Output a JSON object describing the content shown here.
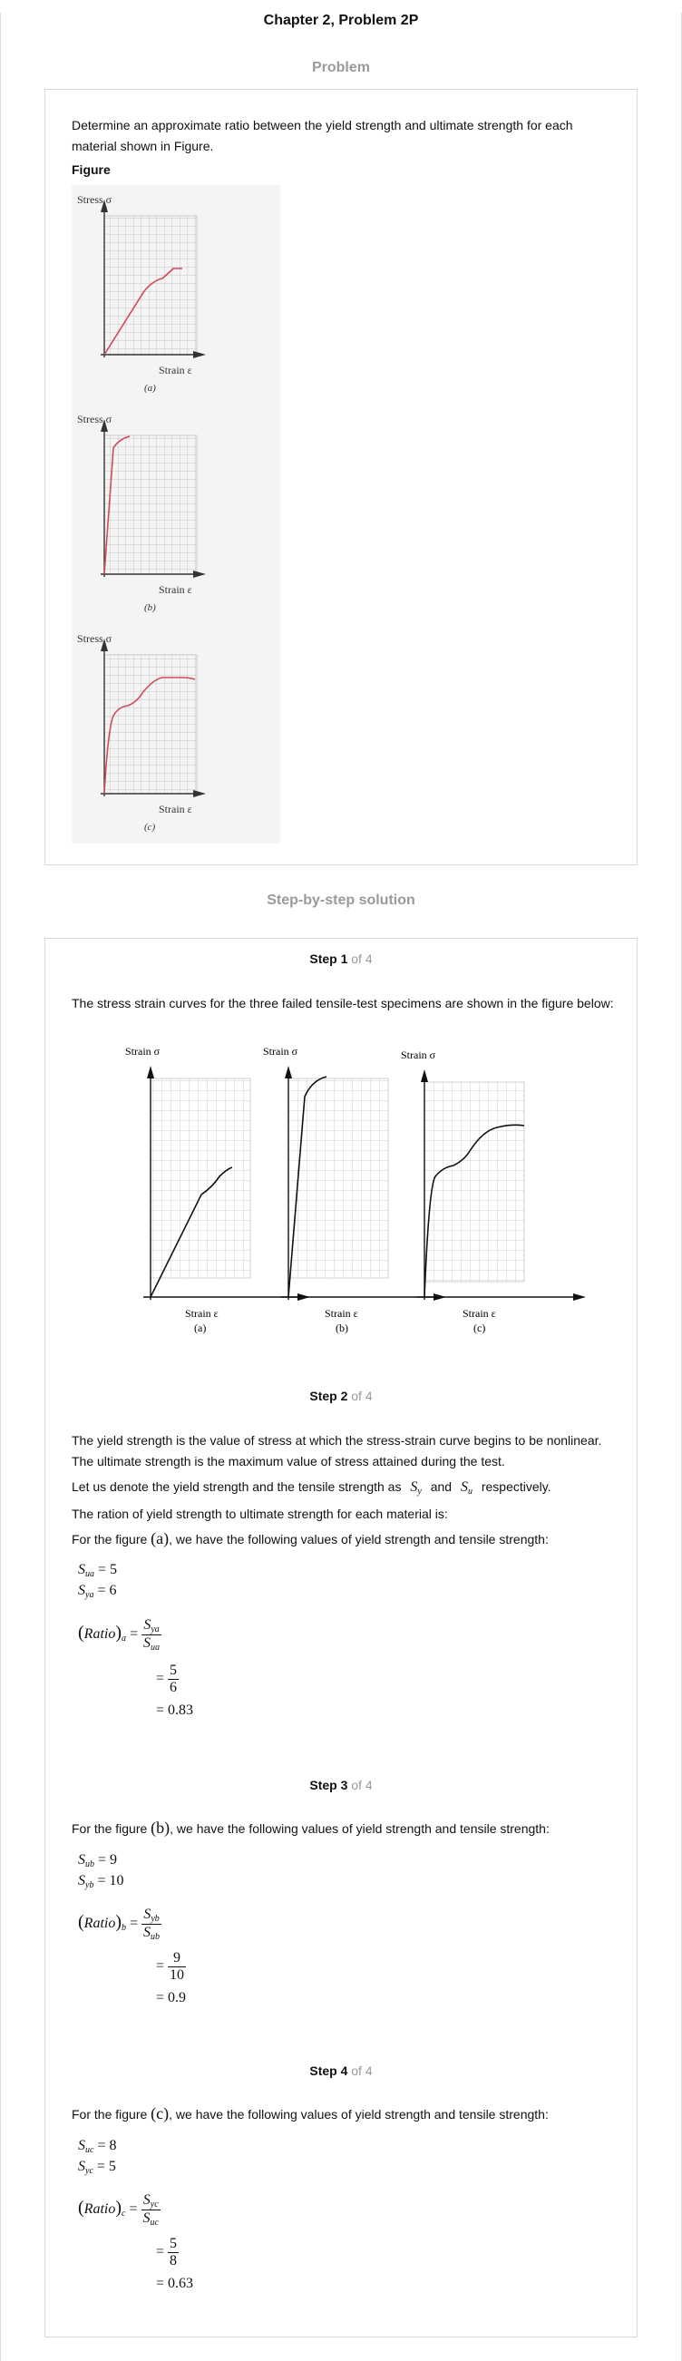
{
  "header": {
    "title": "Chapter 2, Problem 2P",
    "problem_heading": "Problem",
    "solution_heading": "Step-by-step solution"
  },
  "problem": {
    "statement": "Determine an approximate ratio between the yield strength and ultimate strength for each material shown in Figure.",
    "figure_label": "Figure",
    "panels": [
      {
        "ylabel": "Stress  σ",
        "xlabel": "Strain  ε",
        "caption": "(a)"
      },
      {
        "ylabel": "Stress  σ",
        "xlabel": "Strain  ε",
        "caption": "(b)"
      },
      {
        "ylabel": "Stress  σ",
        "xlabel": "Strain  ε",
        "caption": "(c)"
      }
    ]
  },
  "steps": [
    {
      "label": "Step 1",
      "of": "of 4",
      "text": "The stress strain curves for the three failed tensile-test specimens are shown in the figure below:",
      "figure": {
        "panels": [
          {
            "ylabel": "Strain σ",
            "xlabel": "Strain ε",
            "caption": "(a)"
          },
          {
            "ylabel": "Strain σ",
            "xlabel": "Strain ε",
            "caption": "(b)"
          },
          {
            "ylabel": "Strain σ",
            "xlabel": "Strain ε",
            "caption": "(c)"
          }
        ]
      }
    },
    {
      "label": "Step 2",
      "of": "of 4",
      "p1": "The yield strength is the value of stress at which the stress-strain curve begins to be nonlinear. The ultimate strength is the maximum value of stress attained during the test.",
      "p2_before": "Let us denote the yield strength and the tensile strength as",
      "p2_and": "and",
      "p2_after": "respectively.",
      "p3": "The ration of yield strength to ultimate strength for each material is:",
      "p4_before": "For the figure",
      "p4_fig": "(a)",
      "p4_after": ", we have the following values of yield strength and tensile strength:",
      "su_val": "5",
      "sy_val": "6",
      "ratio_sub": "a",
      "frac_num": "5",
      "frac_den": "6",
      "result": "0.83"
    },
    {
      "label": "Step 3",
      "of": "of 4",
      "p_before": "For the figure",
      "p_fig": "(b)",
      "p_after": ", we have the following values of yield strength and tensile strength:",
      "su_val": "9",
      "sy_val": "10",
      "ratio_sub": "b",
      "frac_num": "9",
      "frac_den": "10",
      "result": "0.9"
    },
    {
      "label": "Step 4",
      "of": "of 4",
      "p_before": "For the figure",
      "p_fig": "(c)",
      "p_after": ", we have the following values of yield strength and tensile strength:",
      "su_val": "8",
      "sy_val": "5",
      "ratio_sub": "c",
      "frac_num": "5",
      "frac_den": "8",
      "result": "0.63"
    }
  ]
}
